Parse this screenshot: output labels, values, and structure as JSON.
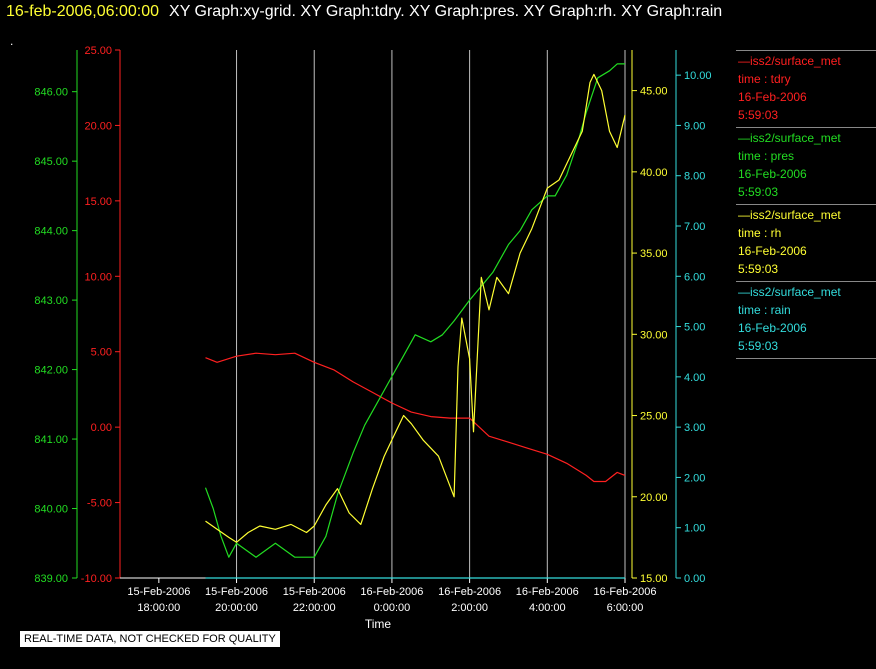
{
  "header": {
    "timestamp": "16-feb-2006,06:00:00",
    "graphs": "XY Graph:xy-grid.  XY Graph:tdry.  XY Graph:pres.  XY Graph:rh.  XY Graph:rain",
    "dot": "."
  },
  "colors": {
    "tdry": "#ff2020",
    "pres": "#22dd22",
    "rh": "#ffff33",
    "rain": "#33dddd",
    "grid": "#c0c0c0"
  },
  "legend": [
    {
      "line": "—iss2/surface_met",
      "var": "time : tdry",
      "date": "16-Feb-2006",
      "time": "5:59:03"
    },
    {
      "line": "—iss2/surface_met",
      "var": "time : pres",
      "date": "16-Feb-2006",
      "time": "5:59:03"
    },
    {
      "line": "—iss2/surface_met",
      "var": "time : rh",
      "date": "16-Feb-2006",
      "time": "5:59:03"
    },
    {
      "line": "—iss2/surface_met",
      "var": "time : rain",
      "date": "16-Feb-2006",
      "time": "5:59:03"
    }
  ],
  "disclaimer": "REAL-TIME DATA, NOT CHECKED FOR QUALITY",
  "chart_data": {
    "type": "line",
    "xlabel": "Time",
    "xlim_hours": [
      17,
      30
    ],
    "x_ticks": [
      {
        "h": 18,
        "d": "15-Feb-2006",
        "t": "18:00:00"
      },
      {
        "h": 20,
        "d": "15-Feb-2006",
        "t": "20:00:00"
      },
      {
        "h": 22,
        "d": "15-Feb-2006",
        "t": "22:00:00"
      },
      {
        "h": 24,
        "d": "16-Feb-2006",
        "t": "0:00:00"
      },
      {
        "h": 26,
        "d": "16-Feb-2006",
        "t": "2:00:00"
      },
      {
        "h": 28,
        "d": "16-Feb-2006",
        "t": "4:00:00"
      },
      {
        "h": 30,
        "d": "16-Feb-2006",
        "t": "6:00:00"
      }
    ],
    "grid_x": true,
    "axes": {
      "tdry": {
        "range": [
          -10,
          25
        ],
        "ticks": [
          "-10.00",
          "-5.00",
          "0.00",
          "5.00",
          "10.00",
          "15.00",
          "20.00",
          "25.00"
        ]
      },
      "pres": {
        "range": [
          839,
          846.6
        ],
        "ticks": [
          "839.00",
          "840.00",
          "841.00",
          "842.00",
          "843.00",
          "844.00",
          "845.00",
          "846.00"
        ]
      },
      "rh": {
        "range": [
          15,
          47.5
        ],
        "ticks": [
          "15.00",
          "20.00",
          "25.00",
          "30.00",
          "35.00",
          "40.00",
          "45.00"
        ]
      },
      "rain": {
        "range": [
          0,
          10.5
        ],
        "ticks": [
          "0.00",
          "1.00",
          "2.00",
          "3.00",
          "4.00",
          "5.00",
          "6.00",
          "7.00",
          "8.00",
          "9.00",
          "10.00"
        ]
      }
    },
    "series": [
      {
        "key": "tdry",
        "x": [
          19.2,
          19.5,
          20,
          20.5,
          21,
          21.5,
          22,
          22.5,
          23,
          23.5,
          24,
          24.5,
          25,
          25.5,
          26,
          26.5,
          27,
          27.5,
          28,
          28.5,
          29,
          29.2,
          29.5,
          29.8,
          30
        ],
        "y": [
          4.6,
          4.3,
          4.7,
          4.9,
          4.8,
          4.9,
          4.3,
          3.8,
          3.0,
          2.3,
          1.6,
          1.0,
          0.7,
          0.6,
          0.6,
          -0.6,
          -1.0,
          -1.4,
          -1.8,
          -2.4,
          -3.2,
          -3.6,
          -3.6,
          -3.0,
          -3.2
        ]
      },
      {
        "key": "pres",
        "x": [
          19.2,
          19.4,
          19.6,
          19.8,
          20,
          20.5,
          21,
          21.5,
          22,
          22.3,
          22.6,
          23,
          23.3,
          23.6,
          24,
          24.3,
          24.6,
          25,
          25.3,
          25.6,
          26,
          26.3,
          26.6,
          27,
          27.3,
          27.6,
          28,
          28.2,
          28.5,
          28.8,
          29,
          29.3,
          29.6,
          29.8,
          30
        ],
        "y": [
          840.3,
          840.0,
          839.6,
          839.3,
          839.5,
          839.3,
          839.5,
          839.3,
          839.3,
          839.6,
          840.2,
          840.8,
          841.2,
          841.5,
          841.9,
          842.2,
          842.5,
          842.4,
          842.5,
          842.7,
          843.0,
          843.2,
          843.4,
          843.8,
          844.0,
          844.3,
          844.5,
          844.5,
          844.8,
          845.3,
          845.7,
          846.2,
          846.3,
          846.4,
          846.4
        ]
      },
      {
        "key": "rh",
        "x": [
          19.2,
          19.5,
          19.8,
          20,
          20.3,
          20.6,
          21,
          21.4,
          21.8,
          22,
          22.3,
          22.6,
          22.9,
          23.2,
          23.5,
          23.8,
          24,
          24.3,
          24.5,
          24.8,
          25.2,
          25.6,
          25.7,
          25.8,
          26,
          26.1,
          26.3,
          26.5,
          26.7,
          27,
          27.3,
          27.6,
          28,
          28.3,
          28.6,
          28.9,
          29.1,
          29.2,
          29.4,
          29.6,
          29.8,
          30
        ],
        "y": [
          18.5,
          18.0,
          17.5,
          17.2,
          17.8,
          18.2,
          18.0,
          18.3,
          17.8,
          18.2,
          19.5,
          20.5,
          19.0,
          18.3,
          20.5,
          22.5,
          23.5,
          25.0,
          24.5,
          23.5,
          22.5,
          20.0,
          28.0,
          31.0,
          28.5,
          24.0,
          33.5,
          31.5,
          33.5,
          32.5,
          35.0,
          36.5,
          39.0,
          39.5,
          41.0,
          42.5,
          45.5,
          46.0,
          45.0,
          42.5,
          41.5,
          43.5
        ]
      },
      {
        "key": "rain",
        "x": [
          19.2,
          30
        ],
        "y": [
          0.0,
          0.0
        ]
      }
    ]
  }
}
